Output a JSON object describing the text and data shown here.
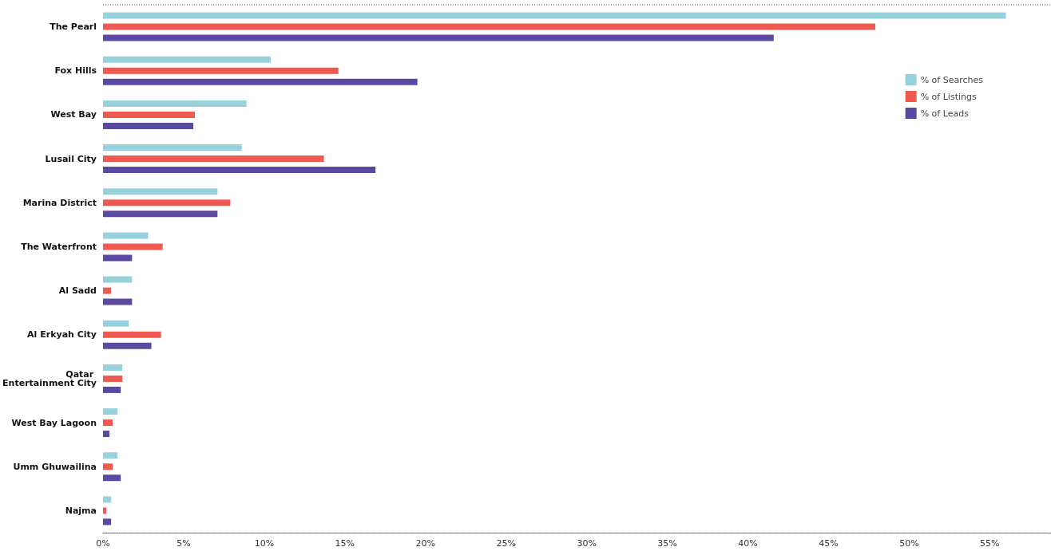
{
  "chart_data": {
    "type": "bar",
    "orientation": "horizontal",
    "categories": [
      "The Pearl",
      "Fox Hills",
      "West Bay",
      "Lusail City",
      "Marina District",
      "The Waterfront",
      "Al Sadd",
      "Al Erkyah City",
      "Qatar Entertainment City",
      "West Bay Lagoon",
      "Umm Ghuwailina",
      "Najma"
    ],
    "series": [
      {
        "name": "% of Searches",
        "color": "#97d2dc",
        "values": [
          56.0,
          10.4,
          8.9,
          8.6,
          7.1,
          2.8,
          1.8,
          1.6,
          1.2,
          0.9,
          0.9,
          0.5
        ]
      },
      {
        "name": "% of Listings",
        "color": "#ee5a4f",
        "values": [
          47.9,
          14.6,
          5.7,
          13.7,
          7.9,
          3.7,
          0.5,
          3.6,
          1.2,
          0.6,
          0.6,
          0.2
        ]
      },
      {
        "name": "% of Leads",
        "color": "#5b48a3",
        "values": [
          41.6,
          19.5,
          5.6,
          16.9,
          7.1,
          1.8,
          1.8,
          3.0,
          1.1,
          0.4,
          1.1,
          0.5
        ]
      }
    ],
    "xlim": [
      0,
      58.8
    ],
    "xticks": [
      {
        "value": 0,
        "label": "0%"
      },
      {
        "value": 5,
        "label": "5%"
      },
      {
        "value": 10,
        "label": "10%"
      },
      {
        "value": 15,
        "label": "15%"
      },
      {
        "value": 20,
        "label": "20%"
      },
      {
        "value": 25,
        "label": "25%"
      },
      {
        "value": 30,
        "label": "30%"
      },
      {
        "value": 35,
        "label": "35%"
      },
      {
        "value": 40,
        "label": "40%"
      },
      {
        "value": 45,
        "label": "45%"
      },
      {
        "value": 50,
        "label": "50%"
      },
      {
        "value": 55,
        "label": "55%"
      }
    ],
    "grid": false,
    "legend": "top right"
  }
}
